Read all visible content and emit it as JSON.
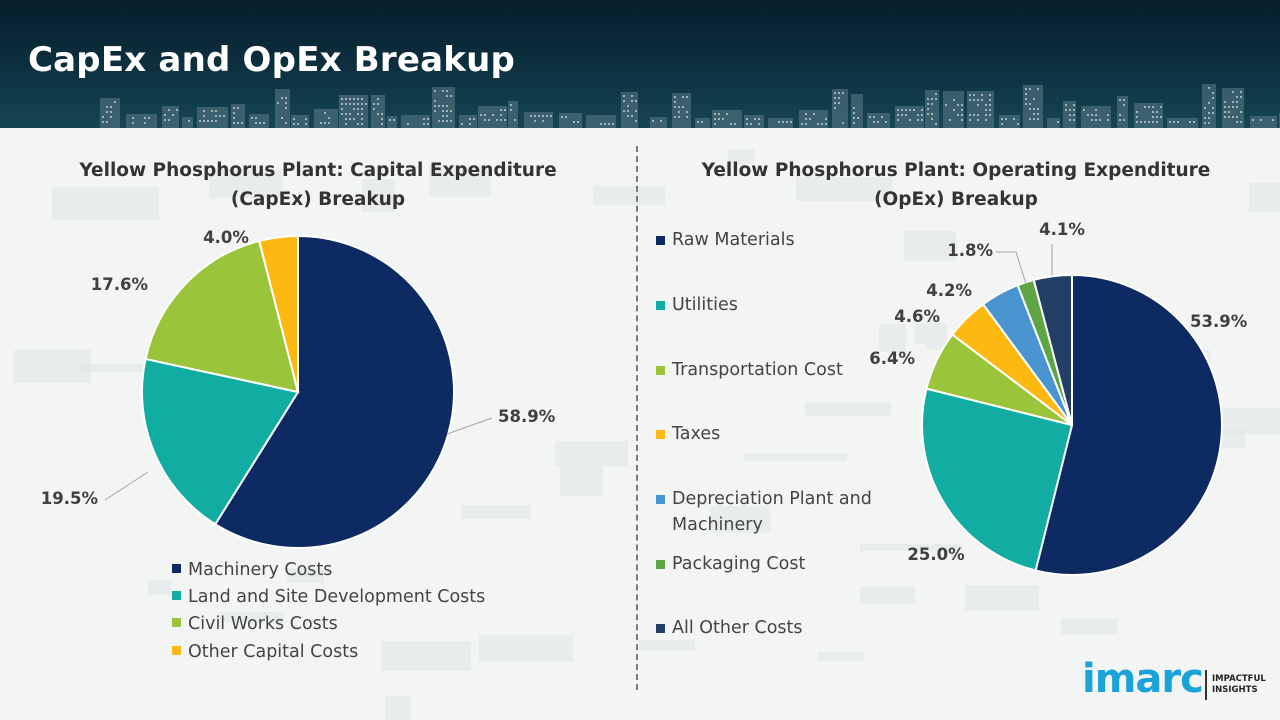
{
  "header": {
    "title": "CapEx and OpEx Breakup"
  },
  "colors": {
    "navy": "#0e2a63",
    "teal": "#12ada2",
    "lime": "#9ac53a",
    "amber": "#fdb912",
    "sky": "#4a95d0",
    "green": "#5ea545",
    "slate": "#243f66"
  },
  "chart_data": [
    {
      "type": "pie",
      "title": "Yellow Phosphorus Plant: Capital Expenditure (CapEx) Breakup",
      "categories": [
        "Machinery Costs",
        "Land and Site Development Costs",
        "Civil Works Costs",
        "Other Capital Costs"
      ],
      "values": [
        58.9,
        19.5,
        17.6,
        4.0
      ],
      "labels": [
        "58.9%",
        "19.5%",
        "17.6%",
        "4.0%"
      ],
      "colors": [
        "#0e2a63",
        "#12ada2",
        "#9ac53a",
        "#fdb912"
      ],
      "legend_position": "bottom"
    },
    {
      "type": "pie",
      "title": "Yellow Phosphorus Plant: Operating Expenditure (OpEx) Breakup",
      "categories": [
        "Raw Materials",
        "Utilities",
        "Transportation Cost",
        "Taxes",
        "Depreciation Plant and Machinery",
        "Packaging Cost",
        "All Other Costs"
      ],
      "values": [
        53.9,
        25.0,
        6.4,
        4.6,
        4.2,
        1.8,
        4.1
      ],
      "labels": [
        "53.9%",
        "25.0%",
        "6.4%",
        "4.6%",
        "4.2%",
        "1.8%",
        "4.1%"
      ],
      "colors": [
        "#0e2a63",
        "#12ada2",
        "#9ac53a",
        "#fdb912",
        "#4a95d0",
        "#5ea545",
        "#243f66"
      ],
      "legend_position": "left"
    }
  ],
  "logo": {
    "brand": "imarc",
    "tagline_line1": "IMPACTFUL",
    "tagline_line2": "INSIGHTS"
  }
}
